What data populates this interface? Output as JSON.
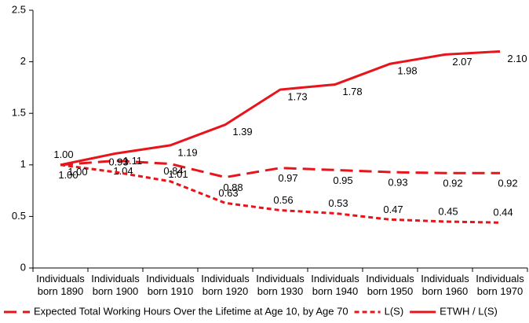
{
  "chart_data": {
    "type": "line",
    "categories": [
      "Individuals born 1890",
      "Individuals born 1900",
      "Individuals born 1910",
      "Individuals born 1920",
      "Individuals born 1930",
      "Individuals born 1940",
      "Individuals born 1950",
      "Individuals born 1960",
      "Individuals born 1970"
    ],
    "series": [
      {
        "name": "Expected Total Working Hours Over the Lifetime at Age 10, by Age 70",
        "color": "#e8141b",
        "line_style": "long-dash",
        "values": [
          1.0,
          1.04,
          1.01,
          0.88,
          0.97,
          0.95,
          0.93,
          0.92,
          0.92
        ],
        "value_labels": [
          "1.00",
          "1.04",
          "1.01",
          "0.88",
          "0.97",
          "0.95",
          "0.93",
          "0.92",
          "0.92"
        ]
      },
      {
        "name": "L(S)",
        "color": "#e8141b",
        "line_style": "dash",
        "values": [
          1.0,
          0.93,
          0.84,
          0.63,
          0.56,
          0.53,
          0.47,
          0.45,
          0.44
        ],
        "value_labels": [
          "1.00",
          "0.93",
          "0.84",
          "0.63",
          "0.56",
          "0.53",
          "0.47",
          "0.45",
          "0.44"
        ]
      },
      {
        "name": "ETWH / L(S)",
        "color": "#e8141b",
        "line_style": "solid",
        "values": [
          1.0,
          1.11,
          1.19,
          1.39,
          1.73,
          1.78,
          1.98,
          2.07,
          2.1
        ],
        "value_labels": [
          "1.00",
          "1.11",
          "1.19",
          "1.39",
          "1.73",
          "1.78",
          "1.98",
          "2.07",
          "2.10"
        ]
      }
    ],
    "ylim": [
      0,
      2.5
    ],
    "yticks": [
      0,
      0.5,
      1,
      1.5,
      2,
      2.5
    ],
    "grid": false,
    "legend": "bottom"
  }
}
